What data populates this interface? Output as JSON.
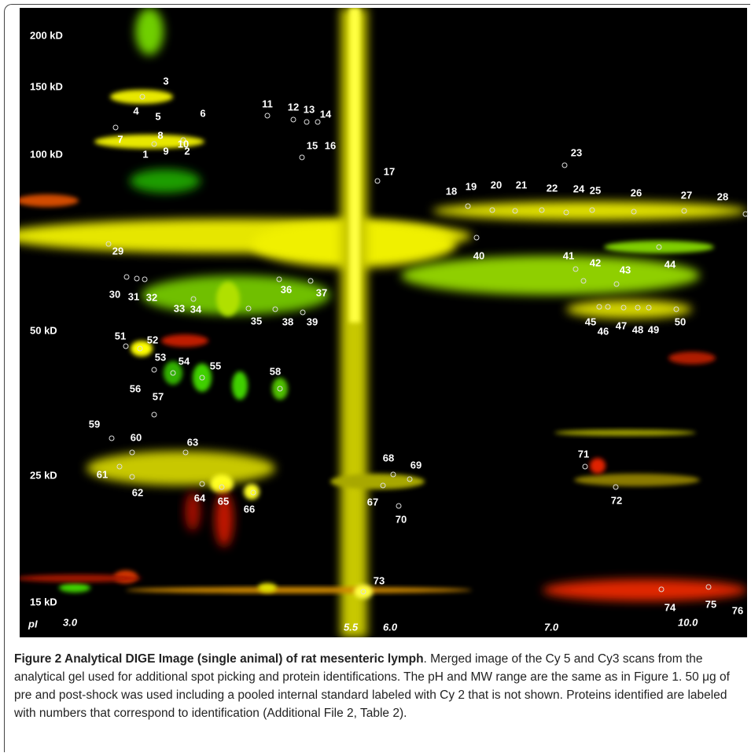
{
  "figure": {
    "mw_labels": [
      "200 kD",
      "150 kD",
      "100 kD",
      "50 kD",
      "25 kD",
      "15 kD"
    ],
    "pi_axis_label": "pI",
    "pi_labels": [
      "3.0",
      "5.5",
      "6.0",
      "7.0",
      "10.0"
    ],
    "spots": [
      "1",
      "2",
      "3",
      "4",
      "5",
      "6",
      "7",
      "8",
      "9",
      "10",
      "11",
      "12",
      "13",
      "14",
      "15",
      "16",
      "17",
      "18",
      "19",
      "20",
      "21",
      "22",
      "23",
      "24",
      "25",
      "26",
      "27",
      "28",
      "29",
      "30",
      "31",
      "32",
      "33",
      "34",
      "35",
      "36",
      "37",
      "38",
      "39",
      "40",
      "41",
      "42",
      "43",
      "44",
      "45",
      "46",
      "47",
      "48",
      "49",
      "50",
      "51",
      "52",
      "53",
      "54",
      "55",
      "56",
      "57",
      "58",
      "59",
      "60",
      "61",
      "62",
      "63",
      "64",
      "65",
      "66",
      "67",
      "68",
      "69",
      "70",
      "71",
      "72",
      "73",
      "74",
      "75",
      "76"
    ]
  },
  "caption": {
    "title": "Figure 2 Analytical DIGE Image (single animal) of rat mesenteric lymph",
    "text": ". Merged image of the Cy 5 and Cy3 scans from the analytical gel used for additional spot picking and protein identifications. The pH and MW range are the same as in Figure 1. 50 μg of pre and post-shock was used including a pooled internal standard labeled with Cy 2 that is not shown. Proteins identified are labeled with numbers that correspond to identification (Additional File 2, Table 2)."
  }
}
